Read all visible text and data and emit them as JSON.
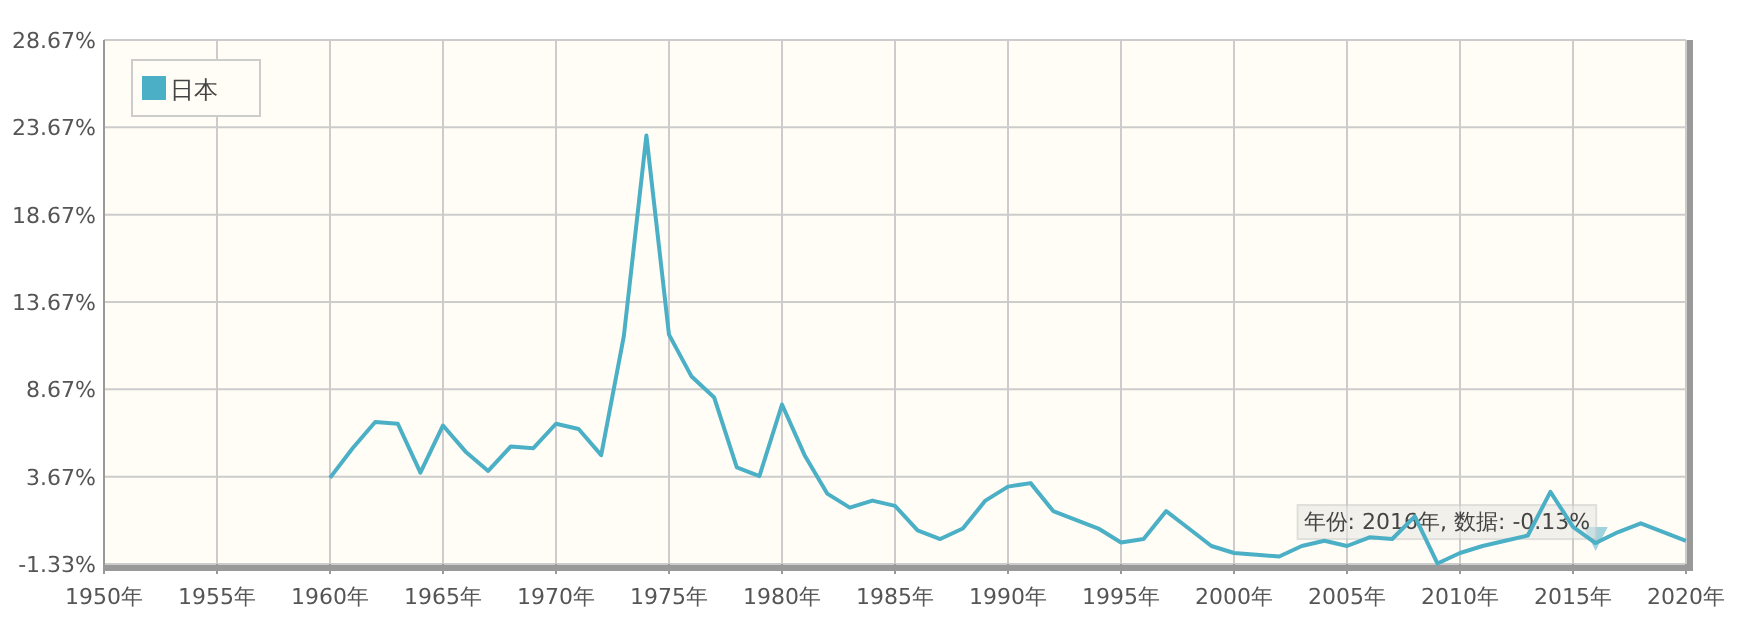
{
  "chart_data": {
    "type": "line",
    "legend": "top left",
    "grid": true,
    "marker": "none",
    "line_style": "solid",
    "x": [
      1960,
      1961,
      1962,
      1963,
      1964,
      1965,
      1966,
      1967,
      1968,
      1969,
      1970,
      1971,
      1972,
      1973,
      1974,
      1975,
      1976,
      1977,
      1978,
      1979,
      1980,
      1981,
      1982,
      1983,
      1984,
      1985,
      1986,
      1987,
      1988,
      1989,
      1990,
      1991,
      1992,
      1993,
      1994,
      1995,
      1996,
      1997,
      1998,
      1999,
      2000,
      2001,
      2002,
      2003,
      2004,
      2005,
      2006,
      2007,
      2008,
      2009,
      2010,
      2011,
      2012,
      2013,
      2014,
      2015,
      2016,
      2017,
      2018,
      2019,
      2020
    ],
    "series": [
      {
        "name": "日本",
        "color": "#4bb0c6",
        "values": [
          3.6,
          5.3,
          6.8,
          6.7,
          3.9,
          6.6,
          5.1,
          4.0,
          5.4,
          5.3,
          6.7,
          6.4,
          4.9,
          11.7,
          23.2,
          11.8,
          9.4,
          8.2,
          4.2,
          3.7,
          7.8,
          4.9,
          2.7,
          1.9,
          2.3,
          2.0,
          0.6,
          0.1,
          0.7,
          2.3,
          3.1,
          3.3,
          1.7,
          1.2,
          0.7,
          -0.1,
          0.1,
          1.7,
          0.7,
          -0.3,
          -0.7,
          -0.8,
          -0.9,
          -0.3,
          0.0,
          -0.3,
          0.2,
          0.1,
          1.4,
          -1.3,
          -0.7,
          -0.3,
          0.0,
          0.3,
          2.8,
          0.8,
          -0.13,
          0.5,
          1.0,
          0.5,
          0.0
        ]
      }
    ],
    "xlim": [
      1950,
      2020
    ],
    "xticks": [
      {
        "value": 1950,
        "label": "1950年"
      },
      {
        "value": 1955,
        "label": "1955年"
      },
      {
        "value": 1960,
        "label": "1960年"
      },
      {
        "value": 1965,
        "label": "1965年"
      },
      {
        "value": 1970,
        "label": "1970年"
      },
      {
        "value": 1975,
        "label": "1975年"
      },
      {
        "value": 1980,
        "label": "1980年"
      },
      {
        "value": 1985,
        "label": "1985年"
      },
      {
        "value": 1990,
        "label": "1990年"
      },
      {
        "value": 1995,
        "label": "1995年"
      },
      {
        "value": 2000,
        "label": "2000年"
      },
      {
        "value": 2005,
        "label": "2005年"
      },
      {
        "value": 2010,
        "label": "2010年"
      },
      {
        "value": 2015,
        "label": "2015年"
      },
      {
        "value": 2020,
        "label": "2020年"
      }
    ],
    "ylim": [
      -1.33,
      28.67
    ],
    "yticks": [
      {
        "value": -1.33,
        "label": "-1.33%"
      },
      {
        "value": 3.67,
        "label": "3.67%"
      },
      {
        "value": 8.67,
        "label": "8.67%"
      },
      {
        "value": 13.67,
        "label": "13.67%"
      },
      {
        "value": 18.67,
        "label": "18.67%"
      },
      {
        "value": 23.67,
        "label": "23.67%"
      },
      {
        "value": 28.67,
        "label": "28.67%"
      }
    ],
    "annotations": [
      {
        "text": "年份: 2016年, 数据: -0.13%",
        "x": 2016,
        "y": -0.13
      }
    ]
  }
}
